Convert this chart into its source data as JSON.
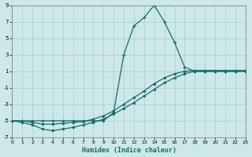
{
  "xlabel": "Humidex (Indice chaleur)",
  "bg_color": "#cce8e8",
  "grid_color": "#aacccc",
  "line_color": "#1a6b6b",
  "xlim": [
    0,
    23
  ],
  "ylim": [
    -7,
    9
  ],
  "yticks": [
    -7,
    -5,
    -3,
    -1,
    1,
    3,
    5,
    7,
    9
  ],
  "xticks": [
    0,
    1,
    2,
    3,
    4,
    5,
    6,
    7,
    8,
    9,
    10,
    11,
    12,
    13,
    14,
    15,
    16,
    17,
    18,
    19,
    20,
    21,
    22,
    23
  ],
  "line1_x": [
    0,
    1,
    2,
    3,
    4,
    5,
    6,
    7,
    8,
    9,
    10,
    11,
    12,
    13,
    14,
    15,
    16,
    17,
    18,
    19,
    20,
    21,
    22,
    23
  ],
  "line1_y": [
    -5,
    -5,
    -5,
    -5,
    -5,
    -5,
    -5,
    -5,
    -5,
    -5,
    -4,
    3,
    6.5,
    7.5,
    9,
    7,
    4.5,
    1.5,
    1,
    1,
    1,
    1,
    1,
    1
  ],
  "line2_x": [
    0,
    1,
    2,
    3,
    4,
    5,
    6,
    7,
    8,
    9,
    10,
    11,
    12,
    13,
    14,
    15,
    16,
    17,
    18,
    19,
    20,
    21,
    22,
    23
  ],
  "line2_y": [
    -5,
    -5,
    -5.2,
    -5.4,
    -5.4,
    -5.3,
    -5.2,
    -5.1,
    -4.8,
    -4.4,
    -3.8,
    -3.0,
    -2.2,
    -1.4,
    -0.5,
    0.2,
    0.7,
    1.0,
    1.1,
    1.1,
    1.1,
    1.1,
    1.1,
    1.1
  ],
  "line3_x": [
    0,
    1,
    2,
    3,
    4,
    5,
    6,
    7,
    8,
    9,
    10,
    11,
    12,
    13,
    14,
    15,
    16,
    17,
    18,
    19,
    20,
    21,
    22,
    23
  ],
  "line3_y": [
    -5,
    -5.2,
    -5.5,
    -6.0,
    -6.2,
    -6.0,
    -5.8,
    -5.5,
    -5.2,
    -4.8,
    -4.2,
    -3.5,
    -2.8,
    -2.0,
    -1.2,
    -0.4,
    0.2,
    0.7,
    1.0,
    1.0,
    1.0,
    1.0,
    1.0,
    1.0
  ]
}
